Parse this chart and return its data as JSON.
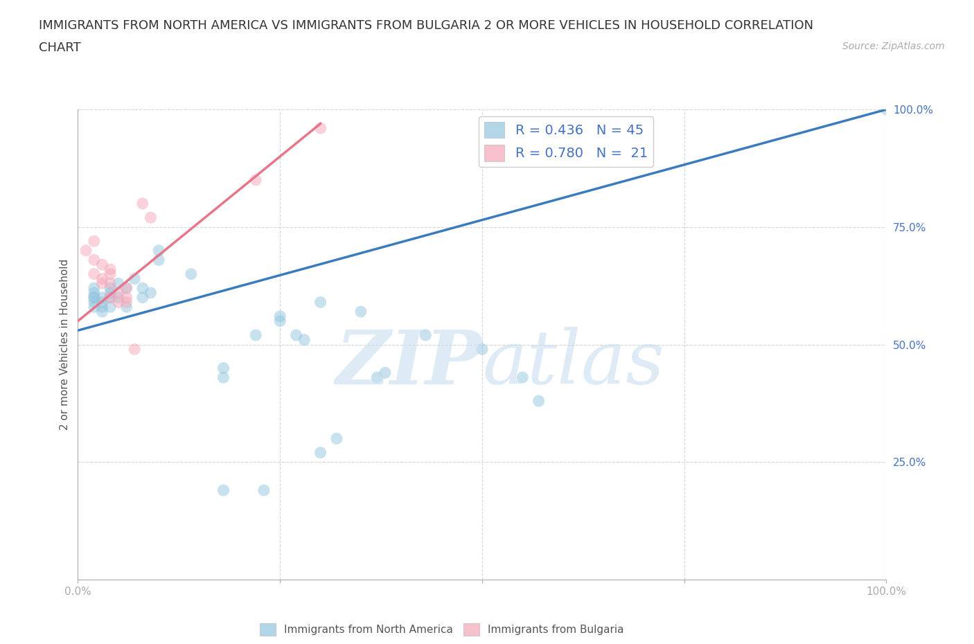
{
  "title_line1": "IMMIGRANTS FROM NORTH AMERICA VS IMMIGRANTS FROM BULGARIA 2 OR MORE VEHICLES IN HOUSEHOLD CORRELATION",
  "title_line2": "CHART",
  "source": "Source: ZipAtlas.com",
  "ylabel": "2 or more Vehicles in Household",
  "xlim": [
    0,
    1.0
  ],
  "ylim": [
    0,
    1.0
  ],
  "blue_color": "#92c5de",
  "pink_color": "#f4a6b8",
  "blue_line_color": "#3a7abf",
  "pink_line_color": "#e8768a",
  "tick_label_color": "#4472c4",
  "blue_scatter": [
    [
      0.02,
      0.58
    ],
    [
      0.02,
      0.6
    ],
    [
      0.02,
      0.61
    ],
    [
      0.02,
      0.62
    ],
    [
      0.02,
      0.59
    ],
    [
      0.02,
      0.6
    ],
    [
      0.03,
      0.59
    ],
    [
      0.03,
      0.58
    ],
    [
      0.03,
      0.57
    ],
    [
      0.03,
      0.6
    ],
    [
      0.04,
      0.6
    ],
    [
      0.04,
      0.58
    ],
    [
      0.04,
      0.61
    ],
    [
      0.04,
      0.62
    ],
    [
      0.05,
      0.6
    ],
    [
      0.05,
      0.63
    ],
    [
      0.06,
      0.58
    ],
    [
      0.06,
      0.62
    ],
    [
      0.07,
      0.64
    ],
    [
      0.08,
      0.6
    ],
    [
      0.08,
      0.62
    ],
    [
      0.09,
      0.61
    ],
    [
      0.1,
      0.7
    ],
    [
      0.1,
      0.68
    ],
    [
      0.14,
      0.65
    ],
    [
      0.18,
      0.43
    ],
    [
      0.18,
      0.45
    ],
    [
      0.22,
      0.52
    ],
    [
      0.25,
      0.56
    ],
    [
      0.25,
      0.55
    ],
    [
      0.27,
      0.52
    ],
    [
      0.28,
      0.51
    ],
    [
      0.3,
      0.59
    ],
    [
      0.35,
      0.57
    ],
    [
      0.37,
      0.43
    ],
    [
      0.38,
      0.44
    ],
    [
      0.43,
      0.52
    ],
    [
      0.5,
      0.49
    ],
    [
      0.55,
      0.43
    ],
    [
      0.57,
      0.38
    ],
    [
      0.3,
      0.27
    ],
    [
      0.32,
      0.3
    ],
    [
      0.18,
      0.19
    ],
    [
      0.23,
      0.19
    ],
    [
      1.0,
      1.0
    ]
  ],
  "pink_scatter": [
    [
      0.01,
      0.7
    ],
    [
      0.02,
      0.72
    ],
    [
      0.02,
      0.68
    ],
    [
      0.02,
      0.65
    ],
    [
      0.03,
      0.64
    ],
    [
      0.03,
      0.67
    ],
    [
      0.03,
      0.63
    ],
    [
      0.04,
      0.66
    ],
    [
      0.04,
      0.65
    ],
    [
      0.04,
      0.63
    ],
    [
      0.04,
      0.6
    ],
    [
      0.05,
      0.59
    ],
    [
      0.05,
      0.61
    ],
    [
      0.06,
      0.62
    ],
    [
      0.06,
      0.6
    ],
    [
      0.06,
      0.59
    ],
    [
      0.07,
      0.49
    ],
    [
      0.08,
      0.8
    ],
    [
      0.09,
      0.77
    ],
    [
      0.22,
      0.85
    ],
    [
      0.3,
      0.96
    ]
  ],
  "blue_line_x": [
    0.0,
    1.0
  ],
  "blue_line_y": [
    0.53,
    1.0
  ],
  "pink_line_x": [
    0.0,
    0.3
  ],
  "pink_line_y": [
    0.55,
    0.97
  ],
  "grid_color": "#cccccc",
  "background_color": "#ffffff",
  "title_fontsize": 13,
  "axis_label_fontsize": 11,
  "tick_fontsize": 11,
  "legend_fontsize": 14
}
